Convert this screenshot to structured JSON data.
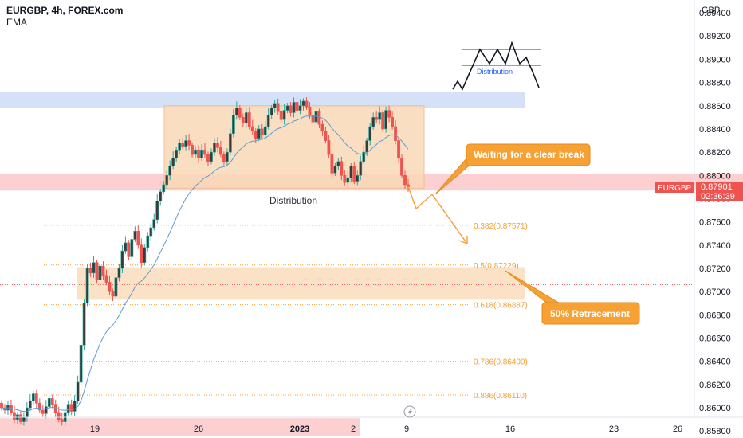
{
  "header": {
    "symbol_line": "EURGBP, 4h, FOREX.com",
    "indicator": "EMA"
  },
  "axis": {
    "currency": "GBP",
    "y_ticks": [
      "0.89400",
      "0.89200",
      "0.89000",
      "0.88800",
      "0.88600",
      "0.88400",
      "0.88200",
      "0.88000",
      "0.87800",
      "0.87600",
      "0.87400",
      "0.87200",
      "0.87000",
      "0.86800",
      "0.86600",
      "0.86400",
      "0.86200",
      "0.86000",
      "0.85800"
    ],
    "x_ticks": [
      "19",
      "26",
      "2023",
      "2",
      "9",
      "16",
      "23",
      "26"
    ]
  },
  "price_tag": {
    "symbol": "EURGBP",
    "price": "0.87901",
    "countdown": "02:36:39"
  },
  "labels": {
    "distribution": "Distribution",
    "mini_distribution": "Distribution",
    "callout_break": "Waiting for a clear break",
    "callout_retracement": "50% Retracement"
  },
  "fib_levels": [
    {
      "label": "0.382(0.87571)",
      "price": 0.87571
    },
    {
      "label": "0.5(0.87229)",
      "price": 0.87229
    },
    {
      "label": "0.618(0.86887)",
      "price": 0.86887
    },
    {
      "label": "0.786(0.86400)",
      "price": 0.864
    },
    {
      "label": "0.886(0.86110)",
      "price": 0.8611
    }
  ],
  "colors": {
    "up": "#26a69a",
    "down": "#ef5350",
    "candle_body_up": "#2f3b2f",
    "ema": "#5b9bd5",
    "supply_zone": "#c9d9f5",
    "demand_zone": "#fbc4c4",
    "distribution_box": "#fad9b8",
    "accent_orange": "#f7a033",
    "price_tag": "#ef5350"
  },
  "chart_data": {
    "type": "candlestick",
    "title": "EURGBP, 4h, FOREX.com",
    "indicator": "EMA",
    "y_unit": "GBP",
    "ylim": [
      0.8574,
      0.8951
    ],
    "last_price": 0.87901,
    "zones": [
      {
        "name": "upper zone",
        "from": 0.8858,
        "to": 0.8872
      },
      {
        "name": "current price zone",
        "from": 0.8787,
        "to": 0.8801
      },
      {
        "name": "lower zone",
        "from": 0.8576,
        "to": 0.8591
      },
      {
        "name": "distribution range",
        "from": 0.8789,
        "to": 0.886
      },
      {
        "name": "retracement zone",
        "from": 0.8693,
        "to": 0.8721
      }
    ],
    "fibonacci": [
      0.87571,
      0.87229,
      0.86887,
      0.864,
      0.8611
    ],
    "closes": [
      0.86,
      0.8598,
      0.8602,
      0.8596,
      0.859,
      0.8594,
      0.8588,
      0.8592,
      0.86,
      0.8606,
      0.8612,
      0.8604,
      0.8598,
      0.8595,
      0.8601,
      0.8608,
      0.8603,
      0.8596,
      0.859,
      0.8588,
      0.8596,
      0.8603,
      0.8597,
      0.8606,
      0.8622,
      0.8654,
      0.869,
      0.872,
      0.8716,
      0.8725,
      0.871,
      0.8722,
      0.8714,
      0.8708,
      0.87,
      0.8696,
      0.8712,
      0.872,
      0.8735,
      0.8742,
      0.873,
      0.8745,
      0.8752,
      0.874,
      0.8725,
      0.8738,
      0.8748,
      0.8755,
      0.8762,
      0.8778,
      0.8786,
      0.8792,
      0.88,
      0.8808,
      0.8815,
      0.8822,
      0.8828,
      0.8825,
      0.883,
      0.8826,
      0.8818,
      0.8822,
      0.8815,
      0.8822,
      0.8818,
      0.8812,
      0.882,
      0.8828,
      0.8824,
      0.8818,
      0.8812,
      0.882,
      0.8836,
      0.8852,
      0.8858,
      0.885,
      0.8845,
      0.8854,
      0.8842,
      0.8838,
      0.8832,
      0.884,
      0.8835,
      0.8842,
      0.8852,
      0.8858,
      0.8862,
      0.8855,
      0.8848,
      0.8856,
      0.886,
      0.8854,
      0.8863,
      0.8856,
      0.886,
      0.8864,
      0.8859,
      0.8852,
      0.8846,
      0.8855,
      0.8844,
      0.8838,
      0.883,
      0.8818,
      0.8802,
      0.8808,
      0.8812,
      0.88,
      0.8794,
      0.8798,
      0.8808,
      0.8795,
      0.88,
      0.8812,
      0.882,
      0.883,
      0.8842,
      0.885,
      0.8848,
      0.8854,
      0.884,
      0.8856,
      0.885,
      0.8842,
      0.883,
      0.8815,
      0.88,
      0.8792,
      0.879
    ]
  }
}
